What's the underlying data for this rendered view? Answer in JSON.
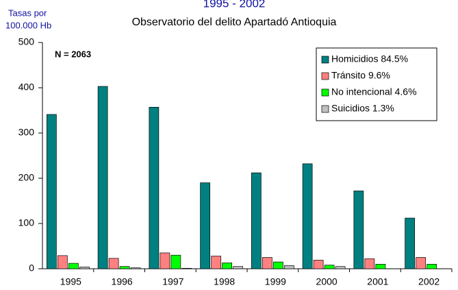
{
  "chart_data": {
    "type": "bar",
    "title": "1995 - 2002",
    "subtitle": "Observatorio del delito Apartadó Antioquia",
    "y_label": [
      "Tasas por",
      "100.000 Hb"
    ],
    "annotation": "N = 2063",
    "categories": [
      "1995",
      "1996",
      "1997",
      "1998",
      "1999",
      "2000",
      "2001",
      "2002"
    ],
    "series": [
      {
        "name": "Homicidios 84.5%",
        "color": "#008080",
        "values": [
          341,
          403,
          357,
          190,
          212,
          232,
          172,
          112
        ]
      },
      {
        "name": "Tránsito 9.6%",
        "color": "#ff8080",
        "values": [
          29,
          23,
          35,
          28,
          25,
          19,
          22,
          25
        ]
      },
      {
        "name": "No intencional 4.6%",
        "color": "#00ff00",
        "values": [
          12,
          5,
          30,
          13,
          15,
          8,
          10,
          10
        ]
      },
      {
        "name": "Suicidios 1.3%",
        "color": "#c0c0c0",
        "values": [
          4,
          2,
          1,
          5,
          7,
          5,
          0,
          0
        ]
      }
    ],
    "ylim": [
      0,
      500
    ],
    "yticks": [
      0,
      100,
      200,
      300,
      400,
      500
    ],
    "grid": false,
    "legend": "top-right"
  }
}
